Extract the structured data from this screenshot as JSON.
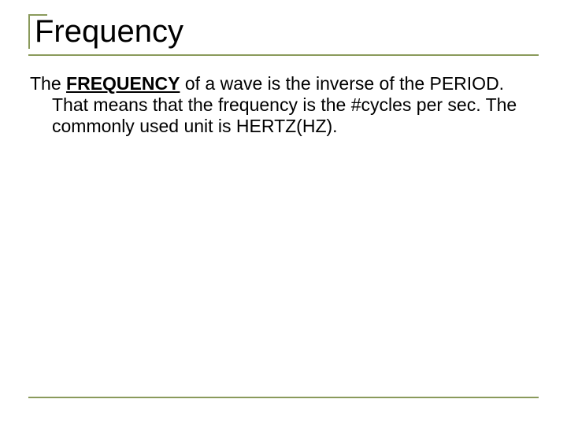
{
  "colors": {
    "accent": "#8a9a5b",
    "text": "#000000",
    "background": "#ffffff"
  },
  "title": "Frequency",
  "body": {
    "lead": "The ",
    "keyword": "FREQUENCY",
    "rest": " of a wave is the inverse of the PERIOD. That means that the frequency is the #cycles per sec. The commonly used unit is HERTZ(HZ)."
  }
}
